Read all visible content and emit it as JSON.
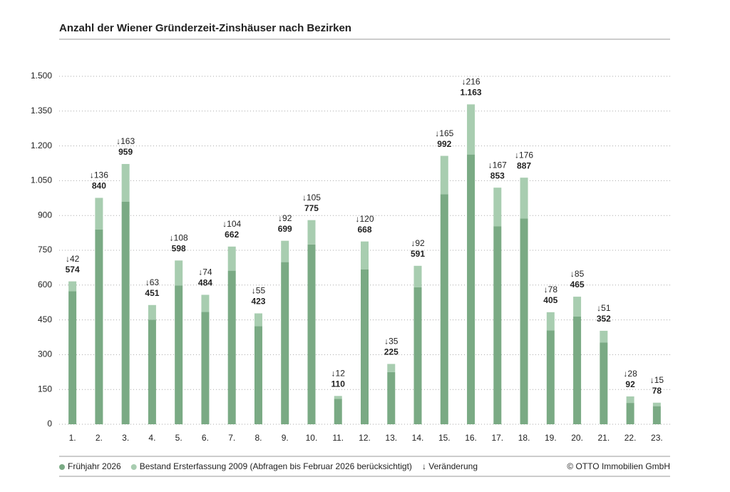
{
  "chart_data": {
    "type": "stacked_bar",
    "title": "Anzahl der Wiener Gründerzeit-Zinshäuser nach Bezirken",
    "categories": [
      "1.",
      "2.",
      "3.",
      "4.",
      "5.",
      "6.",
      "7.",
      "8.",
      "9.",
      "10.",
      "11.",
      "12.",
      "13.",
      "14.",
      "15.",
      "16.",
      "17.",
      "18.",
      "19.",
      "20.",
      "21.",
      "22.",
      "23."
    ],
    "series": [
      {
        "name": "Frühjahr 2026",
        "color": "#7aaa84",
        "values": [
          574,
          840,
          959,
          451,
          598,
          484,
          662,
          423,
          699,
          775,
          110,
          668,
          225,
          591,
          992,
          1163,
          853,
          887,
          405,
          465,
          352,
          92,
          78
        ],
        "value_labels": [
          "574",
          "840",
          "959",
          "451",
          "598",
          "484",
          "662",
          "423",
          "699",
          "775",
          "110",
          "668",
          "225",
          "591",
          "992",
          "1.163",
          "853",
          "887",
          "405",
          "465",
          "352",
          "92",
          "78"
        ]
      },
      {
        "name": "Bestand Ersterfassung 2009 (Abfragen bis Februar 2026 berücksichtigt)",
        "color": "#a8cdb0",
        "values": [
          42,
          136,
          163,
          63,
          108,
          74,
          104,
          55,
          92,
          105,
          12,
          120,
          35,
          92,
          165,
          216,
          167,
          176,
          78,
          85,
          51,
          28,
          15
        ],
        "value_labels": [
          "↓42",
          "↓136",
          "↓163",
          "↓63",
          "↓108",
          "↓74",
          "↓104",
          "↓55",
          "↓92",
          "↓105",
          "↓12",
          "↓120",
          "↓35",
          "↓92",
          "↓165",
          "↓216",
          "↓167",
          "↓176",
          "↓78",
          "↓85",
          "↓51",
          "↓28",
          "↓15"
        ]
      }
    ],
    "legend_note": "↓ Veränderung",
    "source": "© OTTO Immobilien GmbH",
    "ylim": [
      0,
      1500
    ],
    "yticks": [
      0,
      150,
      300,
      450,
      600,
      750,
      900,
      {
        "value": 1050,
        "label": "1.050"
      },
      {
        "value": 1200,
        "label": "1.200"
      },
      {
        "value": 1350,
        "label": "1.350"
      },
      {
        "value": 1500,
        "label": "1.500"
      }
    ],
    "grid": true
  }
}
